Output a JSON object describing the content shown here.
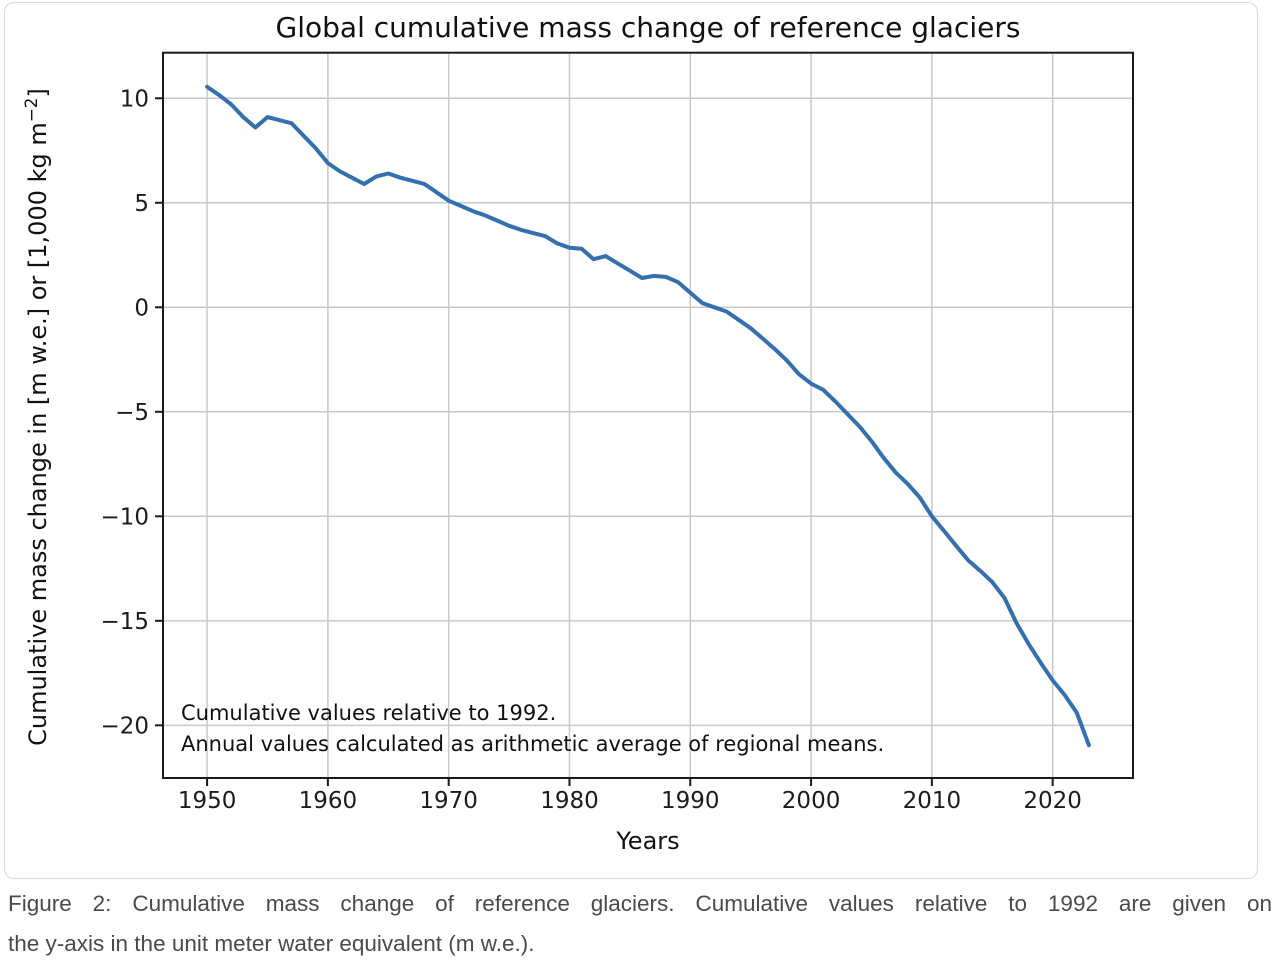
{
  "chart_data": {
    "type": "line",
    "title": "Global cumulative mass change of reference glaciers",
    "xlabel": "Years",
    "ylabel_prefix": "Cumulative mass change in [m w.e.] or [1,000 kg m",
    "ylabel_sup": "−2",
    "ylabel_suffix": "]",
    "annotation_lines": [
      "Cumulative values relative to 1992.",
      "Annual values calculated as arithmetic average of regional means."
    ],
    "x": [
      1950,
      1951,
      1952,
      1953,
      1954,
      1955,
      1956,
      1957,
      1958,
      1959,
      1960,
      1961,
      1962,
      1963,
      1964,
      1965,
      1966,
      1967,
      1968,
      1969,
      1970,
      1971,
      1972,
      1973,
      1974,
      1975,
      1976,
      1977,
      1978,
      1979,
      1980,
      1981,
      1982,
      1983,
      1984,
      1985,
      1986,
      1987,
      1988,
      1989,
      1990,
      1991,
      1992,
      1993,
      1994,
      1995,
      1996,
      1997,
      1998,
      1999,
      2000,
      2001,
      2002,
      2003,
      2004,
      2005,
      2006,
      2007,
      2008,
      2009,
      2010,
      2011,
      2012,
      2013,
      2014,
      2015,
      2016,
      2017,
      2018,
      2019,
      2020,
      2021,
      2022,
      2023
    ],
    "values": [
      10.55,
      10.15,
      9.7,
      9.1,
      8.6,
      9.1,
      8.95,
      8.8,
      8.2,
      7.6,
      6.9,
      6.5,
      6.2,
      5.9,
      6.25,
      6.4,
      6.2,
      6.05,
      5.9,
      5.5,
      5.1,
      4.85,
      4.6,
      4.4,
      4.15,
      3.9,
      3.7,
      3.55,
      3.4,
      3.05,
      2.85,
      2.8,
      2.3,
      2.45,
      2.1,
      1.75,
      1.4,
      1.5,
      1.45,
      1.2,
      0.7,
      0.2,
      0.0,
      -0.2,
      -0.6,
      -1.0,
      -1.5,
      -2.0,
      -2.55,
      -3.2,
      -3.65,
      -3.95,
      -4.5,
      -5.1,
      -5.7,
      -6.4,
      -7.2,
      -7.9,
      -8.45,
      -9.1,
      -10.0,
      -10.7,
      -11.4,
      -12.1,
      -12.6,
      -13.15,
      -13.9,
      -15.1,
      -16.1,
      -17.0,
      -17.85,
      -18.55,
      -19.4,
      -20.95
    ],
    "xticks": [
      1950,
      1960,
      1970,
      1980,
      1990,
      2000,
      2010,
      2020
    ],
    "yticks": [
      10,
      5,
      0,
      -5,
      -10,
      -15,
      -20
    ],
    "xlim": [
      1946.35,
      2026.65
    ],
    "ylim": [
      -22.52,
      12.18
    ],
    "grid": true,
    "legend": "none",
    "line_color": "#3470af",
    "grid_color": "#c9c9c9",
    "spine_color": "#1a1a1a",
    "line_width": 4
  },
  "caption": {
    "line1": "Figure 2: Cumulative mass change of reference glaciers. Cumulative values relative to 1992 are given on",
    "line2": "the y-axis in the unit meter water equivalent (m w.e.)."
  }
}
